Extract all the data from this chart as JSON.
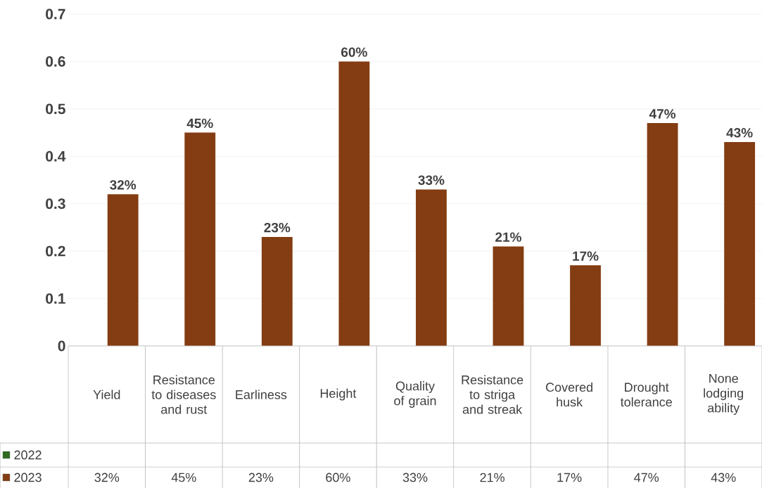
{
  "chart_data": {
    "type": "bar",
    "categories": [
      "Yield",
      "Resistance to diseases and rust",
      "Earliness",
      "Height",
      "Quality of grain",
      "Resistance to striga and streak",
      "Covered husk",
      "Drought tolerance",
      "None lodging ability"
    ],
    "series": [
      {
        "name": "2022",
        "color": "#2e6b1f",
        "values": [
          null,
          null,
          null,
          null,
          null,
          null,
          null,
          null,
          null
        ]
      },
      {
        "name": "2023",
        "color": "#843c12",
        "values": [
          0.32,
          0.45,
          0.23,
          0.6,
          0.33,
          0.21,
          0.17,
          0.47,
          0.43
        ],
        "value_labels": [
          "32%",
          "45%",
          "23%",
          "60%",
          "33%",
          "21%",
          "17%",
          "47%",
          "43%"
        ]
      }
    ],
    "ylim": [
      0,
      0.7
    ],
    "yticks": [
      0,
      0.1,
      0.2,
      0.3,
      0.4,
      0.5,
      0.6,
      0.7
    ],
    "grid": "y",
    "legend": "bottom"
  }
}
